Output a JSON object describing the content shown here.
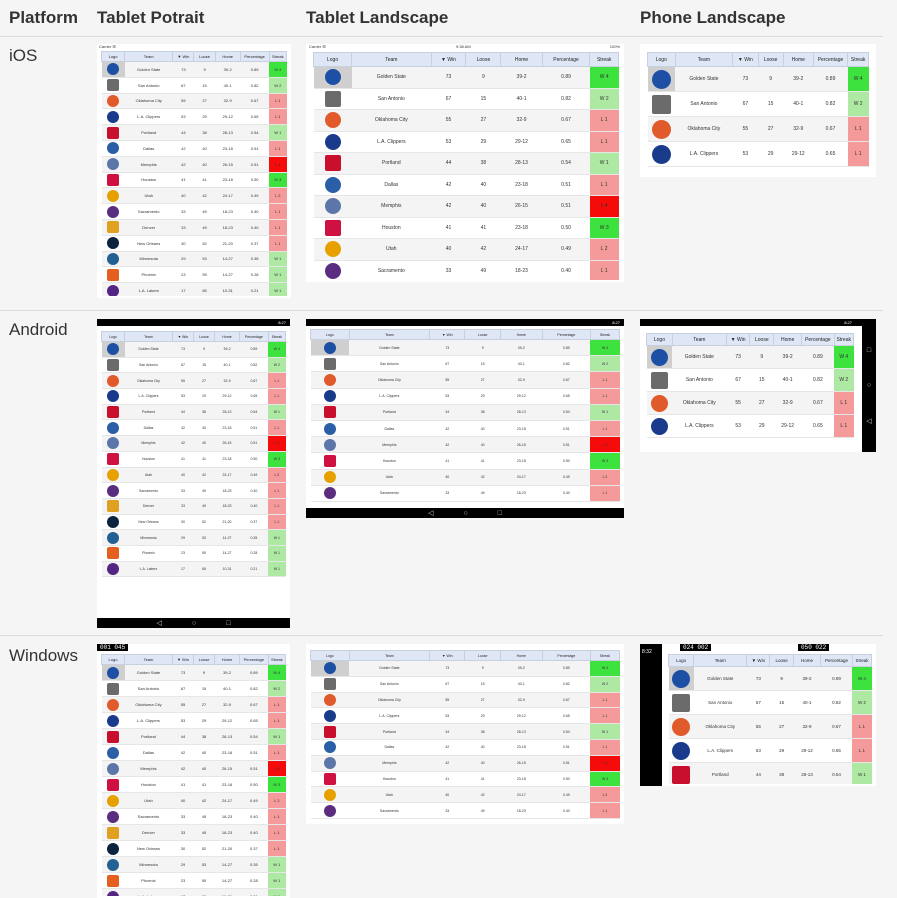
{
  "headers": {
    "platform": "Platform",
    "tablet_portrait": "Tablet Potrait",
    "tablet_landscape": "Tablet Landscape",
    "phone_landscape": "Phone Landscape"
  },
  "rows": {
    "ios": "iOS",
    "android": "Android",
    "windows": "Windows"
  },
  "columns": [
    "Logo",
    "Team",
    "▼ Win",
    "Loose",
    "Home",
    "Percentage",
    "Streak"
  ],
  "teams": [
    {
      "name": "Golden State",
      "win": "73",
      "loose": "9",
      "home": "39-2",
      "pct": "0.89",
      "streak": "W 4",
      "hot": true,
      "color": "#1d4fa5"
    },
    {
      "name": "San Antonio",
      "win": "67",
      "loose": "15",
      "home": "40-1",
      "pct": "0.82",
      "streak": "W 2",
      "hot": false,
      "color": "#6b6b6b"
    },
    {
      "name": "Oklahoma City",
      "win": "55",
      "loose": "27",
      "home": "32-9",
      "pct": "0.67",
      "streak": "L 1",
      "hot": false,
      "color": "#e05a2b"
    },
    {
      "name": "L.A. Clippers",
      "win": "53",
      "loose": "29",
      "home": "29-12",
      "pct": "0.65",
      "streak": "L 1",
      "hot": false,
      "color": "#1a3b8c"
    },
    {
      "name": "Portland",
      "win": "44",
      "loose": "38",
      "home": "28-13",
      "pct": "0.54",
      "streak": "W 1",
      "hot": false,
      "color": "#c8102e"
    },
    {
      "name": "Dallas",
      "win": "42",
      "loose": "40",
      "home": "23-18",
      "pct": "0.51",
      "streak": "L 1",
      "hot": false,
      "color": "#2a5fa8"
    },
    {
      "name": "Memphis",
      "win": "42",
      "loose": "40",
      "home": "26-15",
      "pct": "0.51",
      "streak": "L 4",
      "hot": true,
      "color": "#5d76a9"
    },
    {
      "name": "Houston",
      "win": "41",
      "loose": "41",
      "home": "23-18",
      "pct": "0.50",
      "streak": "W 3",
      "hot": true,
      "color": "#ce1141"
    },
    {
      "name": "Utah",
      "win": "40",
      "loose": "42",
      "home": "24-17",
      "pct": "0.49",
      "streak": "L 2",
      "hot": false,
      "color": "#e6a100"
    },
    {
      "name": "Sacramento",
      "win": "33",
      "loose": "49",
      "home": "18-23",
      "pct": "0.40",
      "streak": "L 1",
      "hot": false,
      "color": "#5a2d81"
    },
    {
      "name": "Denver",
      "win": "33",
      "loose": "49",
      "home": "18-23",
      "pct": "0.40",
      "streak": "L 1",
      "hot": false,
      "color": "#e0a020"
    },
    {
      "name": "New Orleans",
      "win": "30",
      "loose": "52",
      "home": "21-20",
      "pct": "0.37",
      "streak": "L 1",
      "hot": false,
      "color": "#0c2340"
    },
    {
      "name": "Minnesota",
      "win": "29",
      "loose": "53",
      "home": "14-27",
      "pct": "0.35",
      "streak": "W 1",
      "hot": false,
      "color": "#236192"
    },
    {
      "name": "Phoenix",
      "win": "23",
      "loose": "59",
      "home": "14-27",
      "pct": "0.28",
      "streak": "W 1",
      "hot": false,
      "color": "#e56020"
    },
    {
      "name": "L.A. Lakers",
      "win": "17",
      "loose": "65",
      "home": "10-31",
      "pct": "0.21",
      "streak": "W 1",
      "hot": false,
      "color": "#552583"
    }
  ],
  "ios_status": {
    "carrier": "Carrier ☰",
    "time": "9:38 AM",
    "battery": "100%"
  },
  "android_status": {
    "time": "8:27"
  },
  "windows_timers": {
    "portrait": "001 045",
    "phone_left": "024 002",
    "phone_right": "050 022",
    "phone_time": "8:32"
  },
  "nav_icons": {
    "back": "◁",
    "home": "○",
    "recent": "□"
  }
}
